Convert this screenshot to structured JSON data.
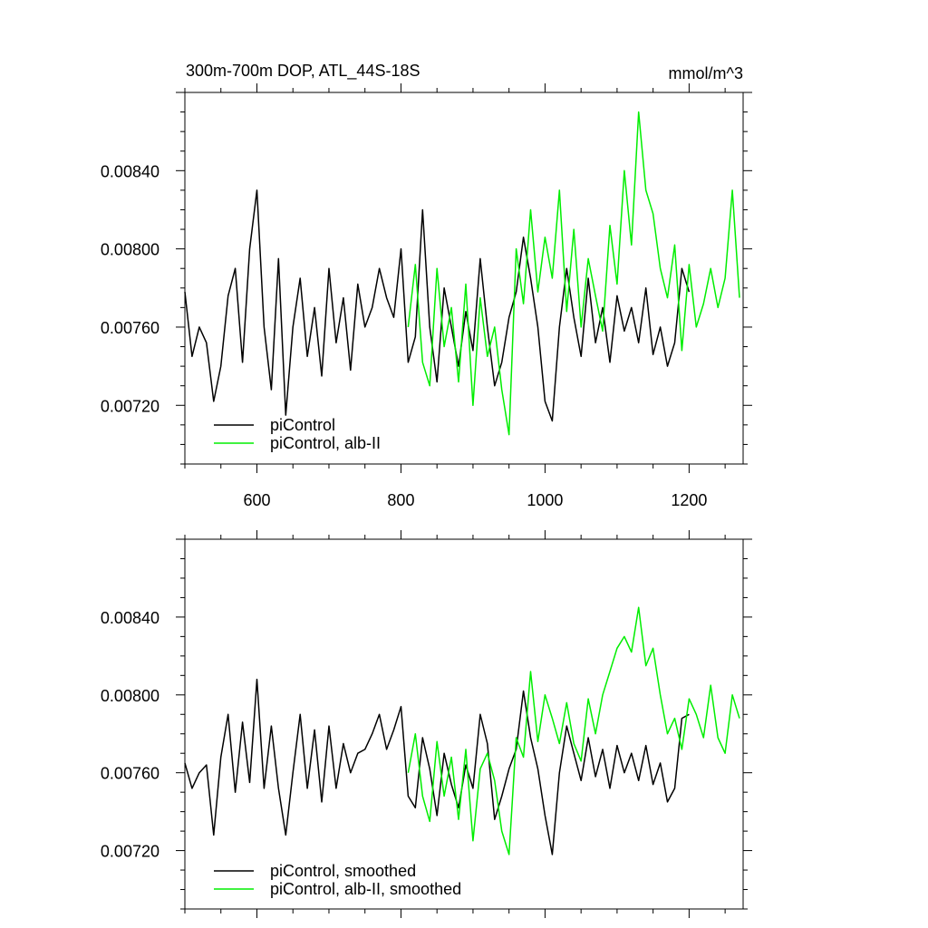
{
  "title_left": "300m-700m DOP, ATL_44S-18S",
  "title_right": "mmol/m^3",
  "colors": {
    "piControl": "#000000",
    "albII": "#00ee00"
  },
  "chart_data": [
    {
      "type": "line",
      "panel": "top",
      "xlim": [
        500,
        1275
      ],
      "ylim": [
        0.0069,
        0.0088
      ],
      "x_ticks": [
        600,
        800,
        1000,
        1200
      ],
      "x_tick_labels": [
        "600",
        "800",
        "1000",
        "1200"
      ],
      "y_ticks": [
        0.0072,
        0.0076,
        0.008,
        0.0084
      ],
      "y_tick_labels": [
        "0.00720",
        "0.00760",
        "0.00800",
        "0.00840"
      ],
      "legend_position": "bottom-left",
      "series": [
        {
          "name": "piControl",
          "color": "#000000",
          "x": [
            500,
            510,
            520,
            530,
            540,
            550,
            560,
            570,
            580,
            590,
            600,
            610,
            620,
            630,
            640,
            650,
            660,
            670,
            680,
            690,
            700,
            710,
            720,
            730,
            740,
            750,
            760,
            770,
            780,
            790,
            800,
            810,
            820,
            830,
            840,
            850,
            860,
            870,
            880,
            890,
            900,
            910,
            920,
            930,
            940,
            950,
            960,
            970,
            980,
            990,
            1000,
            1010,
            1020,
            1030,
            1040,
            1050,
            1060,
            1070,
            1080,
            1090,
            1100,
            1110,
            1120,
            1130,
            1140,
            1150,
            1160,
            1170,
            1180,
            1190,
            1200
          ],
          "y": [
            0.00778,
            0.00745,
            0.0076,
            0.00752,
            0.00722,
            0.0074,
            0.00776,
            0.0079,
            0.00742,
            0.008,
            0.0083,
            0.0076,
            0.00728,
            0.00795,
            0.00715,
            0.0076,
            0.00785,
            0.00745,
            0.0077,
            0.00735,
            0.0079,
            0.00752,
            0.00775,
            0.00738,
            0.00782,
            0.0076,
            0.0077,
            0.0079,
            0.00775,
            0.00765,
            0.008,
            0.00742,
            0.00755,
            0.0082,
            0.0076,
            0.00732,
            0.0078,
            0.0076,
            0.0074,
            0.00768,
            0.00748,
            0.00795,
            0.0076,
            0.0073,
            0.00742,
            0.00765,
            0.00778,
            0.00806,
            0.00785,
            0.0076,
            0.00722,
            0.00712,
            0.0076,
            0.0079,
            0.00765,
            0.00745,
            0.00785,
            0.00752,
            0.0077,
            0.00742,
            0.00776,
            0.00758,
            0.0077,
            0.00752,
            0.0078,
            0.00746,
            0.0076,
            0.0074,
            0.00752,
            0.0079,
            0.00778
          ]
        },
        {
          "name": "piControl, alb-II",
          "color": "#00ee00",
          "x": [
            810,
            820,
            830,
            840,
            850,
            860,
            870,
            880,
            890,
            900,
            910,
            920,
            930,
            940,
            950,
            960,
            970,
            980,
            990,
            1000,
            1010,
            1020,
            1030,
            1040,
            1050,
            1060,
            1070,
            1080,
            1090,
            1100,
            1110,
            1120,
            1130,
            1140,
            1150,
            1160,
            1170,
            1180,
            1190,
            1200,
            1210,
            1220,
            1230,
            1240,
            1250,
            1260,
            1270
          ],
          "y": [
            0.0076,
            0.00792,
            0.00742,
            0.0073,
            0.0079,
            0.0075,
            0.0077,
            0.00732,
            0.00782,
            0.0072,
            0.00775,
            0.00745,
            0.0076,
            0.00728,
            0.00705,
            0.008,
            0.00772,
            0.0082,
            0.00778,
            0.00806,
            0.00785,
            0.0083,
            0.00768,
            0.0081,
            0.0076,
            0.00795,
            0.00776,
            0.00758,
            0.00812,
            0.00782,
            0.0084,
            0.00802,
            0.0087,
            0.0083,
            0.00818,
            0.0079,
            0.00775,
            0.00802,
            0.00748,
            0.00792,
            0.0076,
            0.00772,
            0.0079,
            0.0077,
            0.00785,
            0.0083,
            0.00775
          ]
        }
      ]
    },
    {
      "type": "line",
      "panel": "bottom",
      "xlim": [
        500,
        1275
      ],
      "ylim": [
        0.0069,
        0.0088
      ],
      "x_ticks": [
        600,
        800,
        1000,
        1200
      ],
      "y_ticks": [
        0.0072,
        0.0076,
        0.008,
        0.0084
      ],
      "y_tick_labels": [
        "0.00720",
        "0.00760",
        "0.00800",
        "0.00840"
      ],
      "legend_position": "bottom-left",
      "series": [
        {
          "name": "piControl, smoothed",
          "color": "#000000",
          "x": [
            500,
            510,
            520,
            530,
            540,
            550,
            560,
            570,
            580,
            590,
            600,
            610,
            620,
            630,
            640,
            650,
            660,
            670,
            680,
            690,
            700,
            710,
            720,
            730,
            740,
            750,
            760,
            770,
            780,
            790,
            800,
            810,
            820,
            830,
            840,
            850,
            860,
            870,
            880,
            890,
            900,
            910,
            920,
            930,
            940,
            950,
            960,
            970,
            980,
            990,
            1000,
            1010,
            1020,
            1030,
            1040,
            1050,
            1060,
            1070,
            1080,
            1090,
            1100,
            1110,
            1120,
            1130,
            1140,
            1150,
            1160,
            1170,
            1180,
            1190,
            1200
          ],
          "y": [
            0.00765,
            0.00752,
            0.0076,
            0.00764,
            0.00728,
            0.00768,
            0.0079,
            0.0075,
            0.00786,
            0.00755,
            0.00808,
            0.00752,
            0.00784,
            0.00752,
            0.00728,
            0.0076,
            0.0079,
            0.00752,
            0.00782,
            0.00745,
            0.00784,
            0.00752,
            0.00775,
            0.0076,
            0.0077,
            0.00772,
            0.0078,
            0.0079,
            0.00772,
            0.00782,
            0.00794,
            0.00748,
            0.00742,
            0.00778,
            0.00762,
            0.00738,
            0.0077,
            0.00754,
            0.00742,
            0.00764,
            0.00752,
            0.0079,
            0.00775,
            0.00736,
            0.00748,
            0.00762,
            0.00772,
            0.00802,
            0.00778,
            0.00762,
            0.00738,
            0.00718,
            0.0076,
            0.00784,
            0.0077,
            0.00756,
            0.00778,
            0.00758,
            0.00772,
            0.00752,
            0.00774,
            0.0076,
            0.0077,
            0.00756,
            0.00774,
            0.00754,
            0.00765,
            0.00745,
            0.00752,
            0.00788,
            0.0079
          ]
        },
        {
          "name": "piControl, alb-II, smoothed",
          "color": "#00ee00",
          "x": [
            810,
            820,
            830,
            840,
            850,
            860,
            870,
            880,
            890,
            900,
            910,
            920,
            930,
            940,
            950,
            960,
            970,
            980,
            990,
            1000,
            1010,
            1020,
            1030,
            1040,
            1050,
            1060,
            1070,
            1080,
            1090,
            1100,
            1110,
            1120,
            1130,
            1140,
            1150,
            1160,
            1170,
            1180,
            1190,
            1200,
            1210,
            1220,
            1230,
            1240,
            1250,
            1260,
            1270
          ],
          "y": [
            0.0076,
            0.0078,
            0.00748,
            0.00735,
            0.00776,
            0.00748,
            0.00768,
            0.00736,
            0.00772,
            0.00725,
            0.00762,
            0.0077,
            0.00756,
            0.0073,
            0.00718,
            0.00778,
            0.00768,
            0.00812,
            0.00776,
            0.008,
            0.00788,
            0.00775,
            0.00796,
            0.00775,
            0.00766,
            0.00798,
            0.0078,
            0.008,
            0.00812,
            0.00824,
            0.0083,
            0.00822,
            0.00845,
            0.00815,
            0.00824,
            0.008,
            0.0078,
            0.00788,
            0.00772,
            0.00798,
            0.0079,
            0.00778,
            0.00805,
            0.00778,
            0.0077,
            0.008,
            0.00788
          ]
        }
      ]
    }
  ]
}
